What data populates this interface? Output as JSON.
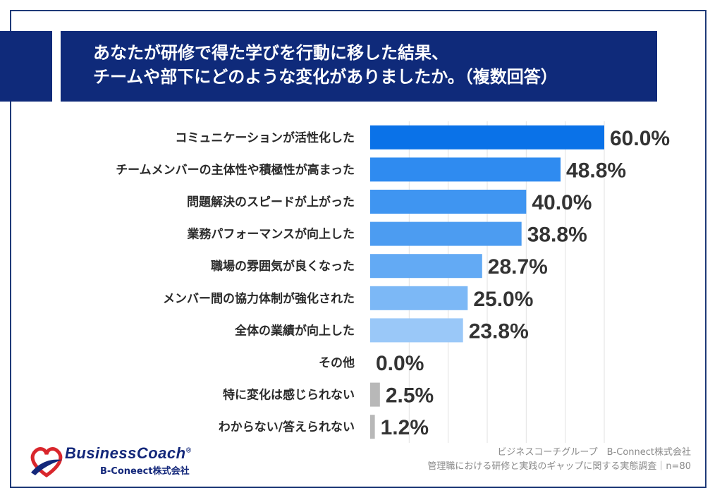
{
  "title": {
    "line1": "あなたが研修で得た学びを行動に移した結果、",
    "line2": "チームや部下にどのような変化がありましたか。（複数回答）"
  },
  "colors": {
    "navy": "#0f2a7a",
    "bars": [
      "#0a72e8",
      "#2f8bf0",
      "#3f95f1",
      "#4c9cf1",
      "#63aaf4",
      "#7cb8f6",
      "#9ac8f8",
      "#b8b8b8",
      "#b8b8b8",
      "#b8b8b8"
    ]
  },
  "chart_data": {
    "type": "bar",
    "orientation": "horizontal",
    "categories": [
      "コミュニケーションが活性化した",
      "チームメンバーの主体性や積極性が高まった",
      "問題解決のスピードが上がった",
      "業務パフォーマンスが向上した",
      "職場の雰囲気が良くなった",
      "メンバー間の協力体制が強化された",
      "全体の業績が向上した",
      "その他",
      "特に変化は感じられない",
      "わからない/答えられない"
    ],
    "values": [
      60.0,
      48.8,
      40.0,
      38.8,
      28.7,
      25.0,
      23.8,
      0.0,
      2.5,
      1.2
    ],
    "value_labels": [
      "60.0%",
      "48.8%",
      "40.0%",
      "38.8%",
      "28.7%",
      "25.0%",
      "23.8%",
      "0.0%",
      "2.5%",
      "1.2%"
    ],
    "xlim": [
      0,
      60
    ],
    "grid": true
  },
  "logo": {
    "main": "BusinessCoach",
    "registered": "®",
    "sub": "B-Coneect株式会社"
  },
  "source": {
    "line1": "ビジネスコーチグループ　B-Connect株式会社",
    "line2": "管理職における研修と実践のギャップに関する実態調査｜n=80"
  }
}
